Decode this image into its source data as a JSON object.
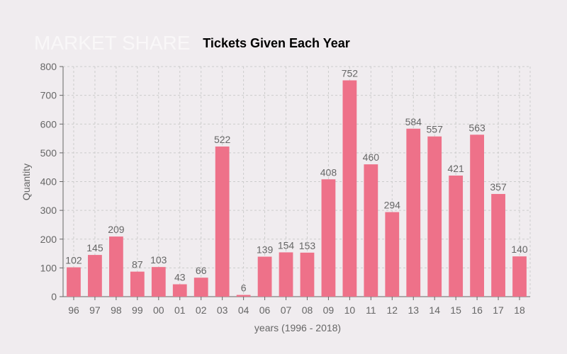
{
  "watermark": "MARKET SHARE",
  "colors": {
    "bar": "#ee7189",
    "background": "#f0ecef"
  },
  "chart_data": {
    "type": "bar",
    "title": "Tickets Given Each Year",
    "xlabel": "years (1996 - 2018)",
    "ylabel": "Quantity",
    "ylim": [
      0,
      800
    ],
    "yticks": [
      0,
      100,
      200,
      300,
      400,
      500,
      600,
      700,
      800
    ],
    "grid": true,
    "categories": [
      "96",
      "97",
      "98",
      "99",
      "00",
      "01",
      "02",
      "03",
      "04",
      "06",
      "07",
      "08",
      "09",
      "10",
      "11",
      "12",
      "13",
      "14",
      "15",
      "16",
      "17",
      "18"
    ],
    "values": [
      102,
      145,
      209,
      87,
      103,
      43,
      66,
      522,
      6,
      139,
      154,
      153,
      408,
      752,
      460,
      294,
      584,
      557,
      421,
      563,
      357,
      140
    ]
  }
}
